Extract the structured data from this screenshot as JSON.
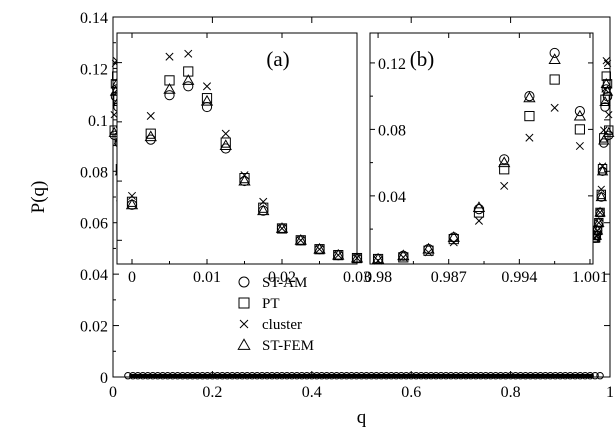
{
  "chart_data": {
    "main": {
      "type": "scatter",
      "xlabel": "q",
      "ylabel": "P(q)",
      "xlim": [
        0,
        1
      ],
      "ylim": [
        0,
        0.14
      ],
      "xticks": [
        0,
        0.2,
        0.4,
        0.6,
        0.8,
        1
      ],
      "xtick_labels": [
        "0",
        "0.2",
        "0.4",
        "0.6",
        "0.8",
        "1"
      ],
      "yticks": [
        0,
        0.02,
        0.04,
        0.06,
        0.08,
        0.1,
        0.12,
        0.14
      ],
      "ytick_labels": [
        "0",
        "0.02",
        "0.04",
        "0.06",
        "0.08",
        "0.1",
        "0.12",
        "0.14"
      ],
      "grid": false,
      "legend_position": "center",
      "symmetric": true,
      "x": [
        0.0025,
        0.005,
        0.0075,
        0.01,
        0.0125,
        0.015,
        0.0175,
        0.02,
        0.0225,
        0.025,
        0.0275,
        0.03
      ],
      "series": [
        {
          "name": "ST-AM",
          "marker": "circle",
          "values": [
            0.094,
            0.109,
            0.112,
            0.105,
            0.091,
            0.08,
            0.07,
            0.064,
            0.06,
            0.057,
            0.055,
            0.054
          ]
        },
        {
          "name": "PT",
          "marker": "square",
          "values": [
            0.096,
            0.114,
            0.117,
            0.108,
            0.093,
            0.081,
            0.071,
            0.064,
            0.06,
            0.057,
            0.055,
            0.054
          ]
        },
        {
          "name": "cluster",
          "marker": "cross",
          "values": [
            0.102,
            0.122,
            0.123,
            0.112,
            0.096,
            0.082,
            0.073,
            0.064,
            0.06,
            0.057,
            0.055,
            0.054
          ]
        },
        {
          "name": "ST-FEM",
          "marker": "triangle",
          "values": [
            0.095,
            0.111,
            0.114,
            0.107,
            0.092,
            0.08,
            0.07,
            0.064,
            0.06,
            0.057,
            0.055,
            0.054
          ]
        }
      ]
    },
    "inset_a": {
      "type": "scatter",
      "label": "(a)",
      "xlim": [
        -0.002,
        0.03
      ],
      "ylim": [
        0.052,
        0.13
      ],
      "xticks": [
        0,
        0.01,
        0.02,
        0.03
      ],
      "xtick_labels": [
        "0",
        "0.01",
        "0.02",
        "0.03"
      ],
      "x": [
        0,
        0.0025,
        0.005,
        0.0075,
        0.01,
        0.0125,
        0.015,
        0.0175,
        0.02,
        0.0225,
        0.025,
        0.0275,
        0.03
      ],
      "series": [
        {
          "name": "ST-AM",
          "values": [
            0.072,
            0.094,
            0.109,
            0.112,
            0.105,
            0.091,
            0.08,
            0.07,
            0.064,
            0.06,
            0.057,
            0.055,
            0.054
          ]
        },
        {
          "name": "PT",
          "values": [
            0.073,
            0.096,
            0.114,
            0.117,
            0.108,
            0.093,
            0.081,
            0.071,
            0.064,
            0.06,
            0.057,
            0.055,
            0.054
          ]
        },
        {
          "name": "cluster",
          "values": [
            0.075,
            0.102,
            0.122,
            0.123,
            0.112,
            0.096,
            0.082,
            0.073,
            0.064,
            0.06,
            0.057,
            0.055,
            0.054
          ]
        },
        {
          "name": "ST-FEM",
          "values": [
            0.072,
            0.095,
            0.111,
            0.114,
            0.107,
            0.092,
            0.08,
            0.07,
            0.064,
            0.06,
            0.057,
            0.055,
            0.054
          ]
        }
      ]
    },
    "inset_b": {
      "type": "scatter",
      "label": "(b)",
      "xlim": [
        0.9792,
        1.0013
      ],
      "ylim": [
        -0.001,
        0.138
      ],
      "xticks": [
        0.98,
        0.987,
        0.994,
        1.001
      ],
      "xtick_labels": [
        "0.98",
        "0.987",
        "0.994",
        "1.001"
      ],
      "yticks": [
        0.04,
        0.08,
        0.12
      ],
      "ytick_labels": [
        "0.04",
        "0.08",
        "0.12"
      ],
      "x": [
        0.98,
        0.9825,
        0.985,
        0.9875,
        0.99,
        0.9925,
        0.995,
        0.9975
      ],
      "series": [
        {
          "name": "ST-AM",
          "values": [
            0.002,
            0.004,
            0.008,
            0.015,
            0.032,
            0.062,
            0.1,
            0.126
          ]
        },
        {
          "name": "PT",
          "values": [
            0.002,
            0.003,
            0.007,
            0.014,
            0.03,
            0.056,
            0.088,
            0.11
          ]
        },
        {
          "name": "cluster",
          "values": [
            0.001,
            0.003,
            0.006,
            0.012,
            0.025,
            0.046,
            0.075,
            0.093
          ]
        },
        {
          "name": "ST-FEM",
          "values": [
            0.002,
            0.004,
            0.008,
            0.015,
            0.033,
            0.06,
            0.099,
            0.122
          ]
        }
      ],
      "right_edge_points": [
        {
          "name": "ST-AM",
          "value": 0.091
        },
        {
          "name": "PT",
          "value": 0.08
        },
        {
          "name": "cluster",
          "value": 0.07
        },
        {
          "name": "ST-FEM",
          "value": 0.088
        }
      ]
    },
    "legend": [
      {
        "name": "ST-AM",
        "marker": "circle"
      },
      {
        "name": "PT",
        "marker": "square"
      },
      {
        "name": "cluster",
        "marker": "cross"
      },
      {
        "name": "ST-FEM",
        "marker": "triangle"
      }
    ],
    "colors": {
      "markers": "#000000",
      "axes": "#000000",
      "background": "#ffffff"
    }
  }
}
